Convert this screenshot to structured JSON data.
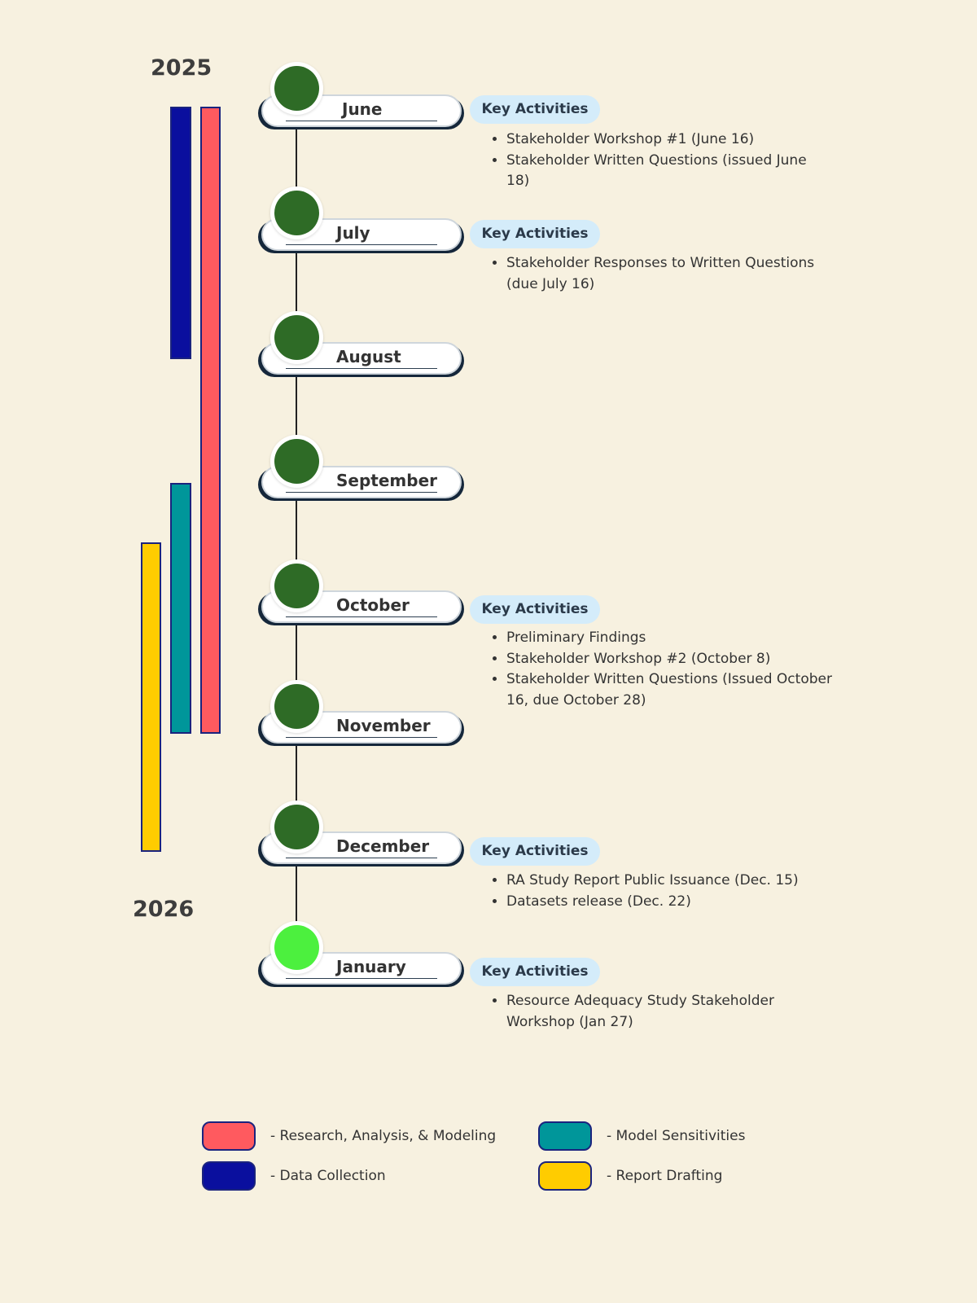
{
  "years": {
    "start": "2025",
    "end": "2026"
  },
  "colors": {
    "research": "#ff5a5f",
    "data_collection": "#0a0f9e",
    "model_sensitivities": "#00969a",
    "report_drafting": "#ffcc00",
    "milestone_past": "#2e6b26",
    "milestone_current": "#4cf03e",
    "badge_bg": "#d4ecfa"
  },
  "phases": {
    "data_collection": {
      "start": "June",
      "end": "August"
    },
    "research": {
      "start": "June",
      "end": "November"
    },
    "model_sensitivities": {
      "start": "September",
      "end": "November"
    },
    "report_drafting": {
      "start": "October",
      "end": "December"
    }
  },
  "months": [
    {
      "label": "June",
      "status": "past",
      "badge": "Key Activities",
      "activities": [
        "Stakeholder Workshop #1 (June 16)",
        "Stakeholder Written Questions (issued June 18)"
      ]
    },
    {
      "label": "July",
      "status": "past",
      "badge": "Key Activities",
      "activities": [
        "Stakeholder Responses to Written Questions (due July 16)"
      ]
    },
    {
      "label": "August",
      "status": "past",
      "badge": "",
      "activities": []
    },
    {
      "label": "September",
      "status": "past",
      "badge": "",
      "activities": []
    },
    {
      "label": "October",
      "status": "past",
      "badge": "Key Activities",
      "activities": [
        "Preliminary Findings",
        "Stakeholder Workshop #2 (October 8)",
        "Stakeholder Written Questions (Issued October 16, due October 28)"
      ]
    },
    {
      "label": "November",
      "status": "past",
      "badge": "",
      "activities": []
    },
    {
      "label": "December",
      "status": "past",
      "badge": "Key Activities",
      "activities": [
        "RA Study Report Public Issuance (Dec. 15)",
        "Datasets release (Dec. 22)"
      ]
    },
    {
      "label": "January",
      "status": "current",
      "badge": "Key Activities",
      "activities": [
        "Resource Adequacy Study Stakeholder Workshop (Jan 27)"
      ]
    }
  ],
  "legend": {
    "research": "- Research, Analysis, & Modeling",
    "model_sensitivities": "- Model Sensitivities",
    "data_collection": "- Data Collection",
    "report_drafting": "- Report Drafting"
  }
}
